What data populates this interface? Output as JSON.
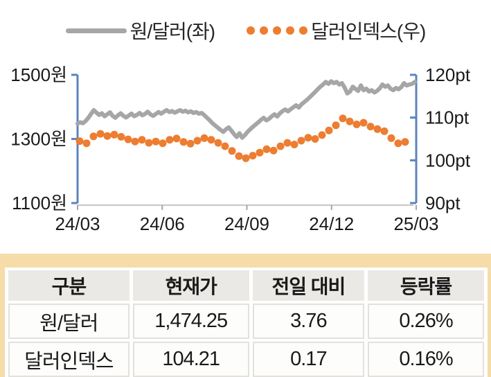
{
  "legend": {
    "series1_label": "원/달러(좌)",
    "series2_label": "달러인덱스(우)"
  },
  "chart_data": {
    "type": "line",
    "title": "",
    "x_tick_labels": [
      "24/03",
      "24/06",
      "24/09",
      "24/12",
      "25/03"
    ],
    "left_axis": {
      "tick_labels": [
        "1500원",
        "1300원",
        "1100원"
      ],
      "range": [
        1100,
        1500
      ],
      "unit": "원"
    },
    "right_axis": {
      "tick_labels": [
        "120pt",
        "110pt",
        "100pt",
        "90pt"
      ],
      "range": [
        90,
        120
      ],
      "unit": "pt"
    },
    "grid": false,
    "legend_position": "top",
    "series": [
      {
        "name": "원/달러(좌)",
        "axis": "left",
        "style": "line",
        "color": "#a6a6a6",
        "values": [
          1348,
          1352,
          1349,
          1356,
          1366,
          1378,
          1390,
          1382,
          1375,
          1380,
          1371,
          1377,
          1383,
          1372,
          1366,
          1374,
          1380,
          1372,
          1367,
          1373,
          1379,
          1371,
          1375,
          1381,
          1374,
          1378,
          1385,
          1377,
          1372,
          1378,
          1384,
          1379,
          1385,
          1390,
          1384,
          1387,
          1382,
          1386,
          1390,
          1385,
          1388,
          1383,
          1386,
          1381,
          1384,
          1379,
          1381,
          1374,
          1366,
          1358,
          1349,
          1342,
          1335,
          1328,
          1322,
          1330,
          1336,
          1326,
          1315,
          1306,
          1318,
          1304,
          1312,
          1322,
          1330,
          1338,
          1345,
          1352,
          1360,
          1366,
          1358,
          1363,
          1371,
          1377,
          1370,
          1380,
          1387,
          1392,
          1386,
          1393,
          1399,
          1405,
          1398,
          1408,
          1415,
          1422,
          1430,
          1438,
          1446,
          1455,
          1463,
          1470,
          1478,
          1472,
          1480,
          1474,
          1478,
          1470,
          1474,
          1460,
          1442,
          1448,
          1463,
          1456,
          1450,
          1467,
          1452,
          1457,
          1448,
          1452,
          1445,
          1450,
          1458,
          1470,
          1463,
          1467,
          1457,
          1452,
          1459,
          1455,
          1462,
          1474,
          1467,
          1470,
          1472,
          1478
        ]
      },
      {
        "name": "달러인덱스(우)",
        "axis": "right",
        "style": "dots",
        "color": "#ed7d31",
        "values": [
          104.5,
          104.0,
          105.6,
          106.2,
          105.7,
          106.0,
          105.5,
          104.9,
          104.4,
          104.8,
          104.1,
          104.4,
          104.0,
          104.8,
          105.1,
          104.3,
          103.9,
          104.6,
          105.2,
          104.8,
          104.1,
          103.3,
          102.2,
          101.0,
          100.5,
          101.1,
          101.8,
          102.6,
          102.3,
          103.3,
          104.1,
          103.7,
          104.6,
          105.3,
          105.0,
          105.9,
          107.0,
          108.2,
          109.8,
          109.1,
          108.4,
          108.8,
          107.9,
          107.3,
          106.8,
          105.2,
          104.0,
          104.3
        ]
      }
    ],
    "axis_color": "#5b84be",
    "x_axis_line_color": "#c9c7c5"
  },
  "table": {
    "headers": [
      "구분",
      "현재가",
      "전일 대비",
      "등락률"
    ],
    "rows": [
      [
        "원/달러",
        "1,474.25",
        "3.76",
        "0.26%"
      ],
      [
        "달러인덱스",
        "104.21",
        "0.17",
        "0.16%"
      ]
    ]
  },
  "colors": {
    "won_dollar_line": "#a6a6a6",
    "dollar_index_dots": "#ed7d31",
    "axis_blue": "#5b84be",
    "table_frame_beige": "#f5dca8",
    "header_cell_gray": "#ebe9e6"
  }
}
